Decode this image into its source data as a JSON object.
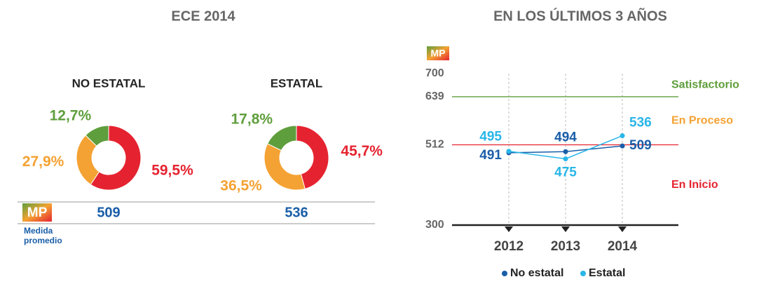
{
  "section_title": "ECE 2014",
  "badge": "MP",
  "badge_caption": "Medida promedio",
  "chart_data": [
    {
      "type": "pie",
      "title": "NO ESTATAL",
      "values": [
        59.5,
        27.9,
        12.7
      ],
      "value_labels": [
        "59,5%",
        "27,9%",
        "12,7%"
      ],
      "colors": [
        "#e52330",
        "#f4a233",
        "#5f9e3c"
      ],
      "mean": 509
    },
    {
      "type": "pie",
      "title": "ESTATAL",
      "values": [
        45.7,
        36.5,
        17.8
      ],
      "value_labels": [
        "45,7%",
        "36,5%",
        "17,8%"
      ],
      "colors": [
        "#e52330",
        "#f4a233",
        "#5f9e3c"
      ],
      "mean": 536
    },
    {
      "type": "line",
      "title": "EN LOS ÚLTIMOS 3 AÑOS",
      "categories": [
        "2012",
        "2013",
        "2014"
      ],
      "series": [
        {
          "name": "No estatal",
          "color": "#1a5ea8",
          "values": [
            491,
            494,
            509
          ]
        },
        {
          "name": "Estatal",
          "color": "#29b6e8",
          "values": [
            495,
            475,
            536
          ]
        }
      ],
      "ylim": [
        300,
        700
      ],
      "yticks": [
        300,
        512,
        639,
        700
      ],
      "grid": true,
      "reference_lines": [
        {
          "value": 639,
          "color": "#5f9e3c"
        },
        {
          "value": 512,
          "color": "#e52330"
        }
      ],
      "zones": [
        {
          "label": "Satisfactorio",
          "color": "#5f9e3c"
        },
        {
          "label": "En Proceso",
          "color": "#f4a233"
        },
        {
          "label": "En Inicio",
          "color": "#e52330"
        }
      ]
    }
  ]
}
